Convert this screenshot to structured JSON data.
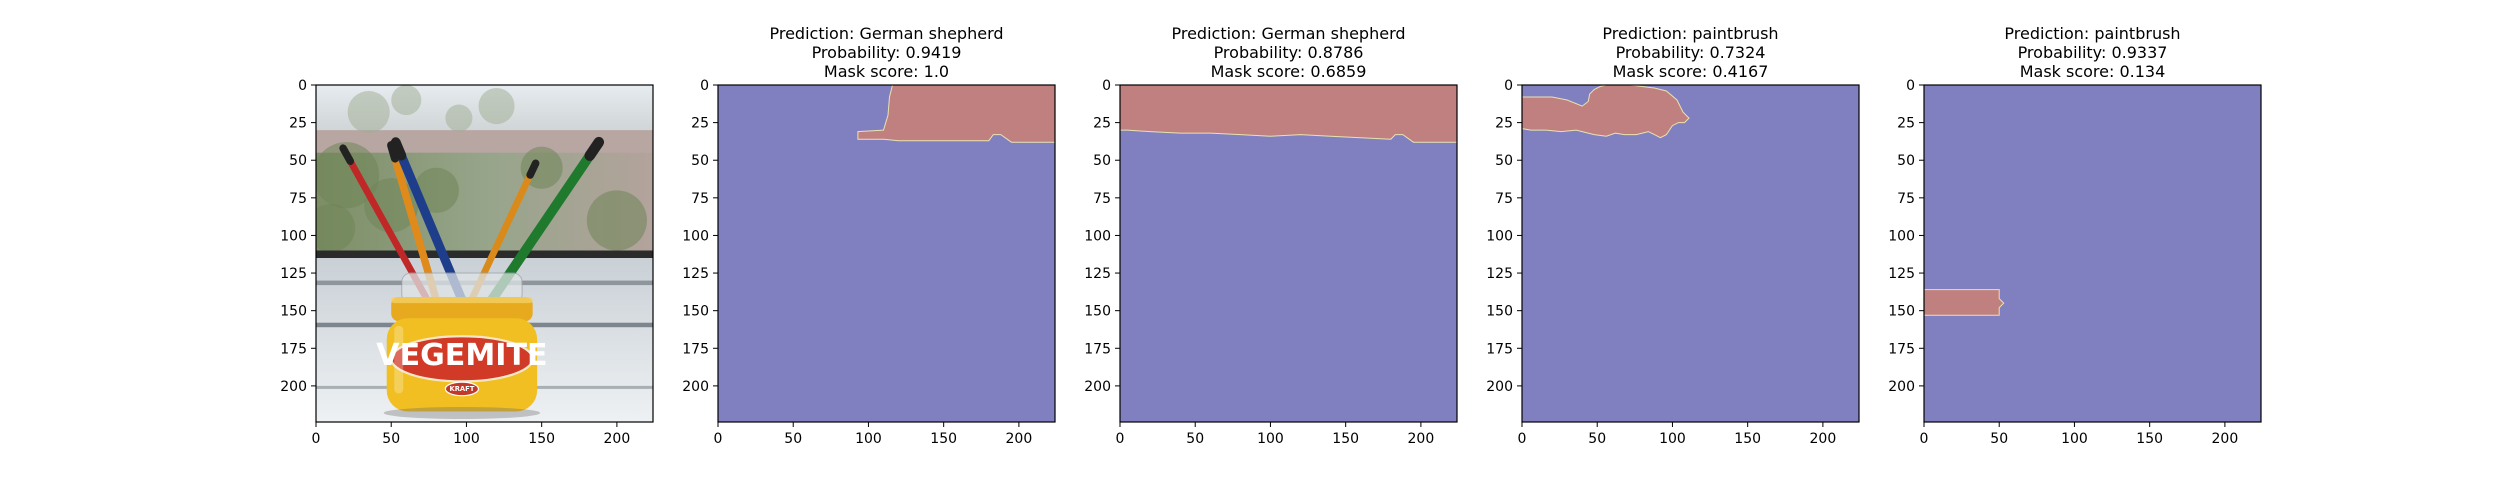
{
  "chart_data": [
    {
      "type": "image",
      "title_lines": [],
      "xlim": [
        0,
        224
      ],
      "ylim": [
        224,
        0
      ],
      "xticks": [
        0,
        50,
        100,
        150,
        200
      ],
      "yticks": [
        0,
        25,
        50,
        75,
        100,
        125,
        150,
        175,
        200
      ],
      "content": "photo"
    },
    {
      "type": "heatmap",
      "title_lines": [
        "Prediction: German shepherd",
        "Probability: 0.9419",
        "Mask score: 1.0"
      ],
      "xlim": [
        0,
        224
      ],
      "ylim": [
        224,
        0
      ],
      "xticks": [
        0,
        50,
        100,
        150,
        200
      ],
      "yticks": [
        0,
        25,
        50,
        75,
        100,
        125,
        150,
        175,
        200
      ],
      "background_color": "#8080c0",
      "mask_color": "#c08080",
      "mask_outline": [
        [
          116,
          0
        ],
        [
          224,
          0
        ],
        [
          224,
          38
        ],
        [
          195,
          38
        ],
        [
          188,
          33
        ],
        [
          183,
          33
        ],
        [
          180,
          37
        ],
        [
          120,
          37
        ],
        [
          110,
          36
        ],
        [
          93,
          36
        ],
        [
          93,
          31
        ],
        [
          110,
          30
        ],
        [
          113,
          20
        ],
        [
          114,
          8
        ]
      ]
    },
    {
      "type": "heatmap",
      "title_lines": [
        "Prediction: German shepherd",
        "Probability: 0.8786",
        "Mask score: 0.6859"
      ],
      "xlim": [
        0,
        224
      ],
      "ylim": [
        224,
        0
      ],
      "xticks": [
        0,
        50,
        100,
        150,
        200
      ],
      "yticks": [
        0,
        25,
        50,
        75,
        100,
        125,
        150,
        175,
        200
      ],
      "background_color": "#8080c0",
      "mask_color": "#c08080",
      "mask_outline": [
        [
          0,
          0
        ],
        [
          224,
          0
        ],
        [
          224,
          38
        ],
        [
          195,
          38
        ],
        [
          188,
          33
        ],
        [
          183,
          33
        ],
        [
          180,
          36
        ],
        [
          160,
          35
        ],
        [
          140,
          34
        ],
        [
          120,
          33
        ],
        [
          100,
          34
        ],
        [
          80,
          33
        ],
        [
          60,
          32
        ],
        [
          40,
          32
        ],
        [
          20,
          31
        ],
        [
          5,
          30
        ],
        [
          0,
          30
        ]
      ]
    },
    {
      "type": "heatmap",
      "title_lines": [
        "Prediction: paintbrush",
        "Probability: 0.7324",
        "Mask score: 0.4167"
      ],
      "xlim": [
        0,
        224
      ],
      "ylim": [
        224,
        0
      ],
      "xticks": [
        0,
        50,
        100,
        150,
        200
      ],
      "yticks": [
        0,
        25,
        50,
        75,
        100,
        125,
        150,
        175,
        200
      ],
      "background_color": "#8080c0",
      "mask_color": "#c08080",
      "mask_outline": [
        [
          0,
          8
        ],
        [
          6,
          8
        ],
        [
          20,
          8
        ],
        [
          30,
          10
        ],
        [
          40,
          14
        ],
        [
          44,
          11
        ],
        [
          45,
          6
        ],
        [
          48,
          3
        ],
        [
          52,
          1
        ],
        [
          56,
          0
        ],
        [
          66,
          0
        ],
        [
          72,
          0
        ],
        [
          80,
          1
        ],
        [
          88,
          2
        ],
        [
          96,
          4
        ],
        [
          103,
          10
        ],
        [
          107,
          18
        ],
        [
          111,
          22
        ],
        [
          108,
          25
        ],
        [
          104,
          25
        ],
        [
          100,
          27
        ],
        [
          98,
          30
        ],
        [
          96,
          33
        ],
        [
          92,
          35
        ],
        [
          88,
          33
        ],
        [
          84,
          31
        ],
        [
          80,
          32
        ],
        [
          76,
          33
        ],
        [
          68,
          33
        ],
        [
          62,
          32
        ],
        [
          56,
          34
        ],
        [
          48,
          33
        ],
        [
          44,
          32
        ],
        [
          36,
          30
        ],
        [
          26,
          31
        ],
        [
          16,
          30
        ],
        [
          6,
          30
        ],
        [
          0,
          29
        ]
      ]
    },
    {
      "type": "heatmap",
      "title_lines": [
        "Prediction: paintbrush",
        "Probability: 0.9337",
        "Mask score: 0.134"
      ],
      "xlim": [
        0,
        224
      ],
      "ylim": [
        224,
        0
      ],
      "xticks": [
        0,
        50,
        100,
        150,
        200
      ],
      "yticks": [
        0,
        25,
        50,
        75,
        100,
        125,
        150,
        175,
        200
      ],
      "background_color": "#8080c0",
      "mask_color": "#c08080",
      "mask_outline": [
        [
          0,
          136
        ],
        [
          50,
          136
        ],
        [
          50,
          142
        ],
        [
          53,
          145
        ],
        [
          50,
          148
        ],
        [
          50,
          153
        ],
        [
          0,
          153
        ]
      ]
    }
  ],
  "photo": {
    "jar_label_text": "VEGEMITE",
    "jar_brand_text": "KRAFT",
    "brush_colors": [
      "#c02828",
      "#e08a1c",
      "#1e3e8c",
      "#d98a1a",
      "#1f7a2e"
    ],
    "label_color": "#d13a27",
    "lid_color": "#e7a91e"
  }
}
